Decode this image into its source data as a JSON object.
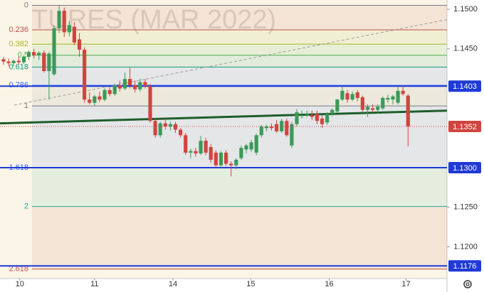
{
  "chart_data": {
    "type": "candlestick",
    "watermark": "TURES (MAR 2022)",
    "up_color": "#3b9a5a",
    "down_color": "#d0453f",
    "open": [
      1.1437,
      1.1434,
      1.1432,
      1.1435,
      1.1433,
      1.144,
      1.1446,
      1.1442,
      1.1445,
      1.1422,
      1.1418,
      1.1476,
      1.1498,
      1.1471,
      1.1478,
      1.1462,
      1.1449,
      1.1386,
      1.1382,
      1.139,
      1.1386,
      1.1398,
      1.1393,
      1.1404,
      1.14,
      1.1412,
      1.1404,
      1.1399,
      1.1408,
      1.1403,
      1.1359,
      1.1341,
      1.1356,
      1.1352,
      1.1355,
      1.1348,
      1.1341,
      1.1319,
      1.1321,
      1.1318,
      1.1334,
      1.1326,
      1.1319,
      1.1303,
      1.1319,
      1.1305,
      1.1303,
      1.1312,
      1.1323,
      1.1323,
      1.1319,
      1.1341,
      1.135,
      1.1352,
      1.1355,
      1.1346,
      1.1359,
      1.1328,
      1.1355,
      1.1366,
      1.1368,
      1.1366,
      1.1368,
      1.1362,
      1.1357,
      1.1368,
      1.1371,
      1.1386,
      1.1394,
      1.1386,
      1.1395,
      1.1389,
      1.1373,
      1.1375,
      1.1373,
      1.1375,
      1.1386,
      1.1386,
      1.1382,
      1.1397,
      1.1391
    ],
    "high": [
      1.144,
      1.1438,
      1.1436,
      1.144,
      1.1442,
      1.1448,
      1.145,
      1.1447,
      1.1448,
      1.1446,
      1.148,
      1.1505,
      1.1502,
      1.1485,
      1.1484,
      1.147,
      1.1452,
      1.1395,
      1.1392,
      1.1396,
      1.14,
      1.1402,
      1.1406,
      1.141,
      1.142,
      1.1426,
      1.141,
      1.1412,
      1.1412,
      1.1406,
      1.1362,
      1.1358,
      1.1362,
      1.1358,
      1.1358,
      1.135,
      1.1344,
      1.1324,
      1.1325,
      1.134,
      1.1338,
      1.133,
      1.1322,
      1.1321,
      1.1322,
      1.1308,
      1.1312,
      1.1328,
      1.133,
      1.1335,
      1.1343,
      1.1354,
      1.1354,
      1.1356,
      1.136,
      1.1362,
      1.1362,
      1.1358,
      1.1374,
      1.1372,
      1.1372,
      1.1372,
      1.1372,
      1.1366,
      1.137,
      1.1375,
      1.1387,
      1.1403,
      1.1398,
      1.1396,
      1.1398,
      1.1391,
      1.138,
      1.138,
      1.138,
      1.139,
      1.1392,
      1.1392,
      1.1403,
      1.1404,
      1.1393
    ],
    "low": [
      1.143,
      1.1428,
      1.1428,
      1.143,
      1.1431,
      1.1436,
      1.1438,
      1.1436,
      1.142,
      1.1386,
      1.1416,
      1.147,
      1.1465,
      1.1466,
      1.1455,
      1.144,
      1.1382,
      1.138,
      1.1378,
      1.1383,
      1.1384,
      1.139,
      1.1391,
      1.1396,
      1.1398,
      1.14,
      1.1395,
      1.1396,
      1.14,
      1.1357,
      1.1338,
      1.1338,
      1.1348,
      1.1347,
      1.1344,
      1.1338,
      1.1316,
      1.1312,
      1.1314,
      1.1316,
      1.1316,
      1.1306,
      1.13,
      1.13,
      1.1302,
      1.1289,
      1.1298,
      1.131,
      1.1318,
      1.132,
      1.1316,
      1.1338,
      1.1346,
      1.1347,
      1.1344,
      1.1344,
      1.1339,
      1.1325,
      1.1352,
      1.1362,
      1.1364,
      1.136,
      1.1355,
      1.135,
      1.1354,
      1.1365,
      1.1369,
      1.1384,
      1.1382,
      1.1384,
      1.1384,
      1.1371,
      1.1364,
      1.137,
      1.1368,
      1.1373,
      1.1382,
      1.138,
      1.138,
      1.1391,
      1.1327
    ],
    "close": [
      1.1434,
      1.1432,
      1.1435,
      1.1433,
      1.144,
      1.1446,
      1.1442,
      1.1445,
      1.1422,
      1.1444,
      1.1476,
      1.1498,
      1.1471,
      1.148,
      1.1458,
      1.1449,
      1.1386,
      1.1382,
      1.139,
      1.1386,
      1.1398,
      1.1393,
      1.1404,
      1.14,
      1.1412,
      1.1404,
      1.1399,
      1.1408,
      1.1403,
      1.1359,
      1.1341,
      1.1356,
      1.1352,
      1.1355,
      1.1348,
      1.1341,
      1.1319,
      1.1321,
      1.1318,
      1.1334,
      1.1319,
      1.131,
      1.1303,
      1.1319,
      1.1305,
      1.1303,
      1.131,
      1.1325,
      1.1328,
      1.1332,
      1.1341,
      1.1352,
      1.1352,
      1.135,
      1.1346,
      1.1359,
      1.1341,
      1.1355,
      1.137,
      1.1366,
      1.1368,
      1.1364,
      1.1359,
      1.1355,
      1.1368,
      1.1373,
      1.1386,
      1.1397,
      1.1386,
      1.1393,
      1.1388,
      1.1373,
      1.1377,
      1.1373,
      1.1377,
      1.1388,
      1.1388,
      1.139,
      1.1397,
      1.1393,
      1.1352
    ],
    "xlim": [
      -0.7,
      87.7
    ],
    "xticks": [
      {
        "value": 3.2,
        "label": "10"
      },
      {
        "value": 18.0,
        "label": "11"
      },
      {
        "value": 33.5,
        "label": "14"
      },
      {
        "value": 48.9,
        "label": "15"
      },
      {
        "value": 64.4,
        "label": "16"
      },
      {
        "value": 79.6,
        "label": "17"
      }
    ],
    "ylim": [
      1.11601,
      1.15117
    ],
    "yticks": [
      {
        "value": 1.15,
        "label": "1.1500"
      },
      {
        "value": 1.145,
        "label": "1.1450"
      },
      {
        "value": 1.125,
        "label": "1.1250"
      },
      {
        "value": 1.12,
        "label": "1.1200"
      }
    ],
    "fib": {
      "levels": [
        0,
        0.236,
        0.382,
        0.5,
        0.618,
        0.786,
        1,
        1.618,
        2,
        2.618
      ],
      "prices": [
        1.1505,
        1.1474,
        1.1456,
        1.1442,
        1.1427,
        1.1404,
        1.1378,
        1.13,
        1.1251,
        1.1172
      ],
      "colors": [
        "#787b86",
        "#c0504d",
        "#a3b82e",
        "#4caf50",
        "#089981",
        "#2962ff",
        "#787b86",
        "#2962ff",
        "#26a69a",
        "#c0504d"
      ]
    },
    "horizontal_lines": [
      1.1403,
      {
        "value": 1.13,
        "label": "1.1300"
      },
      1.1176
    ],
    "horizontal_line_color": "#1f3ad6",
    "trend_lines": [
      {
        "points": [
          [
            -0.7,
            1.1356
          ],
          [
            87.7,
            1.1372
          ]
        ],
        "color": "#1e5e2a",
        "width": 3,
        "dashed": false
      },
      {
        "points": [
          [
            2.1,
            1.1379
          ],
          [
            87.7,
            1.1487
          ]
        ],
        "color": "#9a9a9a",
        "width": 1,
        "dashed": true
      }
    ]
  }
}
